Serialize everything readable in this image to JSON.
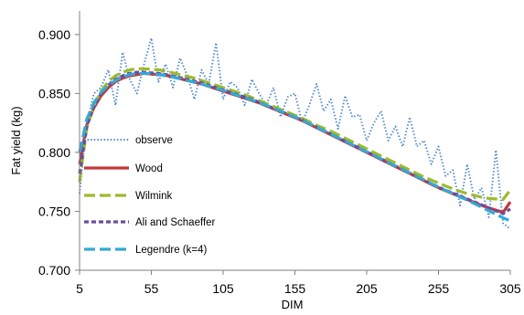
{
  "chart_data": {
    "type": "line",
    "title": "",
    "xlabel": "DIM",
    "ylabel": "Fat yield (kg)",
    "xlim": [
      5,
      305
    ],
    "ylim": [
      0.7,
      0.92
    ],
    "x_ticks": [
      "5",
      "55",
      "105",
      "155",
      "205",
      "255",
      "305"
    ],
    "y_ticks": [
      "0.700",
      "0.750",
      "0.800",
      "0.850",
      "0.900"
    ],
    "grid": false,
    "legend_placement": "left, inside plot area",
    "x": [
      5,
      10,
      15,
      20,
      25,
      30,
      35,
      40,
      45,
      50,
      55,
      60,
      65,
      70,
      75,
      80,
      85,
      90,
      95,
      100,
      105,
      110,
      115,
      120,
      125,
      130,
      135,
      140,
      145,
      150,
      155,
      160,
      165,
      170,
      175,
      180,
      185,
      190,
      195,
      200,
      205,
      210,
      215,
      220,
      225,
      230,
      235,
      240,
      245,
      250,
      255,
      260,
      265,
      270,
      275,
      280,
      285,
      290,
      295,
      300,
      305
    ],
    "series": [
      {
        "name": "observe",
        "color": "#4a86c8",
        "dash": "dotted",
        "values": [
          0.765,
          0.825,
          0.85,
          0.855,
          0.87,
          0.84,
          0.885,
          0.862,
          0.85,
          0.875,
          0.897,
          0.86,
          0.875,
          0.855,
          0.88,
          0.865,
          0.845,
          0.87,
          0.858,
          0.893,
          0.845,
          0.86,
          0.855,
          0.84,
          0.862,
          0.85,
          0.84,
          0.855,
          0.83,
          0.847,
          0.85,
          0.825,
          0.84,
          0.858,
          0.835,
          0.845,
          0.82,
          0.848,
          0.83,
          0.832,
          0.81,
          0.825,
          0.835,
          0.81,
          0.822,
          0.805,
          0.83,
          0.805,
          0.81,
          0.79,
          0.805,
          0.78,
          0.785,
          0.755,
          0.79,
          0.76,
          0.77,
          0.745,
          0.802,
          0.74,
          0.735
        ]
      },
      {
        "name": "Wood",
        "color": "#c0393b",
        "dash": "solid",
        "values": [
          0.79,
          0.823,
          0.838,
          0.848,
          0.855,
          0.86,
          0.863,
          0.865,
          0.866,
          0.867,
          0.8665,
          0.866,
          0.8655,
          0.864,
          0.8625,
          0.861,
          0.8595,
          0.858,
          0.856,
          0.854,
          0.852,
          0.85,
          0.848,
          0.846,
          0.844,
          0.842,
          0.8395,
          0.837,
          0.8345,
          0.832,
          0.8295,
          0.827,
          0.824,
          0.821,
          0.818,
          0.815,
          0.812,
          0.809,
          0.806,
          0.803,
          0.8,
          0.797,
          0.794,
          0.791,
          0.788,
          0.785,
          0.782,
          0.779,
          0.776,
          0.773,
          0.77,
          0.7675,
          0.765,
          0.7625,
          0.76,
          0.7575,
          0.755,
          0.753,
          0.751,
          0.749,
          0.758
        ]
      },
      {
        "name": "Wilmink",
        "color": "#9bbb2e",
        "dash": "long-dash",
        "values": [
          0.775,
          0.82,
          0.84,
          0.852,
          0.86,
          0.865,
          0.868,
          0.87,
          0.871,
          0.871,
          0.8705,
          0.87,
          0.869,
          0.8675,
          0.866,
          0.8645,
          0.863,
          0.861,
          0.859,
          0.857,
          0.855,
          0.853,
          0.851,
          0.849,
          0.8465,
          0.844,
          0.8415,
          0.839,
          0.8365,
          0.834,
          0.8315,
          0.829,
          0.826,
          0.823,
          0.8205,
          0.818,
          0.815,
          0.812,
          0.809,
          0.806,
          0.803,
          0.8,
          0.797,
          0.794,
          0.791,
          0.788,
          0.785,
          0.782,
          0.779,
          0.7765,
          0.774,
          0.7715,
          0.769,
          0.767,
          0.765,
          0.7635,
          0.762,
          0.761,
          0.7605,
          0.76,
          0.768
        ]
      },
      {
        "name": "Ali and Schaeffer",
        "color": "#6a4ca3",
        "dash": "short-dash",
        "values": [
          0.782,
          0.822,
          0.839,
          0.85,
          0.857,
          0.862,
          0.865,
          0.867,
          0.868,
          0.868,
          0.8675,
          0.867,
          0.866,
          0.8648,
          0.8635,
          0.862,
          0.8605,
          0.859,
          0.857,
          0.855,
          0.853,
          0.851,
          0.849,
          0.847,
          0.845,
          0.8425,
          0.84,
          0.8375,
          0.835,
          0.8325,
          0.83,
          0.8275,
          0.8245,
          0.8215,
          0.8185,
          0.8155,
          0.8125,
          0.8095,
          0.8065,
          0.8035,
          0.8005,
          0.7975,
          0.7945,
          0.7915,
          0.7885,
          0.7855,
          0.7825,
          0.7795,
          0.7765,
          0.7735,
          0.7705,
          0.768,
          0.7655,
          0.763,
          0.7605,
          0.758,
          0.7555,
          0.753,
          0.7505,
          0.748,
          0.752
        ]
      },
      {
        "name": "Legendre (k=4)",
        "color": "#35a9d4",
        "dash": "long-dash",
        "values": [
          0.8,
          0.828,
          0.842,
          0.851,
          0.857,
          0.861,
          0.864,
          0.866,
          0.867,
          0.867,
          0.8668,
          0.866,
          0.865,
          0.8638,
          0.8625,
          0.861,
          0.8595,
          0.858,
          0.8562,
          0.8545,
          0.8525,
          0.8505,
          0.8485,
          0.8465,
          0.8445,
          0.8422,
          0.84,
          0.8375,
          0.835,
          0.8325,
          0.83,
          0.8272,
          0.8245,
          0.8215,
          0.8185,
          0.8155,
          0.8125,
          0.8095,
          0.8065,
          0.8035,
          0.8005,
          0.7975,
          0.7945,
          0.7915,
          0.7885,
          0.7855,
          0.7825,
          0.7795,
          0.7765,
          0.7735,
          0.7705,
          0.7678,
          0.765,
          0.7622,
          0.7595,
          0.7565,
          0.7535,
          0.7505,
          0.7475,
          0.7445,
          0.742
        ]
      }
    ]
  }
}
